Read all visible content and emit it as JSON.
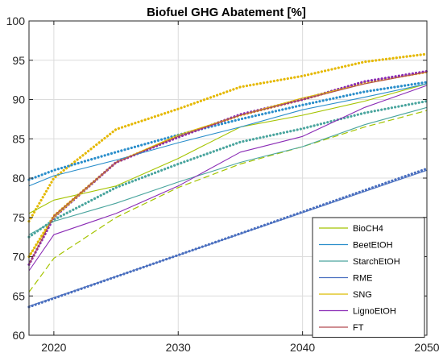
{
  "chart_data": {
    "type": "line",
    "title": "Biofuel GHG Abatement [%]",
    "xlabel": "",
    "ylabel": "",
    "xlim": [
      2018,
      2050
    ],
    "ylim": [
      60,
      100
    ],
    "xticks": [
      2020,
      2030,
      2040,
      2050
    ],
    "yticks": [
      60,
      65,
      70,
      75,
      80,
      85,
      90,
      95,
      100
    ],
    "grid": true,
    "legend_position": "bottom-right",
    "series": [
      {
        "name": "BioCH4",
        "color": "#a5c400",
        "x": [
          2018,
          2020,
          2025,
          2030,
          2035,
          2040,
          2045,
          2050
        ],
        "y": [
          75.5,
          77.2,
          79.0,
          82.5,
          86.5,
          88.0,
          89.8,
          92.0
        ]
      },
      {
        "name": "BeetEtOH",
        "color": "#2a8ecb",
        "x": [
          2018,
          2020,
          2025,
          2030,
          2035,
          2040,
          2045,
          2050
        ],
        "y": [
          79.0,
          80.3,
          82.3,
          84.5,
          86.5,
          88.7,
          90.3,
          92.0
        ]
      },
      {
        "name": "StarchEtOH",
        "color": "#4aa59e",
        "x": [
          2018,
          2020,
          2025,
          2030,
          2035,
          2040,
          2045,
          2050
        ],
        "y": [
          72.8,
          74.5,
          76.8,
          79.5,
          82.0,
          84.0,
          86.8,
          89.0
        ]
      },
      {
        "name": "RME",
        "color": "#4a6fbf",
        "x": [
          2018,
          2050
        ],
        "y": [
          63.7,
          81.0
        ]
      },
      {
        "name": "SNG",
        "color": "#dcbc00",
        "x": [
          2018,
          2020,
          2025,
          2030,
          2035,
          2040,
          2045,
          2050
        ],
        "y": [
          70.0,
          75.0,
          82.0,
          85.5,
          88.0,
          90.2,
          92.0,
          93.5
        ]
      },
      {
        "name": "LignoEtOH",
        "color": "#8a2bb5",
        "x": [
          2018,
          2020,
          2025,
          2030,
          2035,
          2040,
          2045,
          2050
        ],
        "y": [
          68.2,
          72.8,
          75.5,
          79.0,
          83.3,
          85.3,
          89.0,
          91.8
        ]
      },
      {
        "name": "FT",
        "color": "#b24a50",
        "x": [
          2018,
          2020,
          2025,
          2030,
          2035,
          2040,
          2045,
          2050
        ],
        "y": [
          69.0,
          75.2,
          82.0,
          85.3,
          88.0,
          90.0,
          92.0,
          93.5
        ]
      }
    ],
    "overlay_series": [
      {
        "color": "#e5b800",
        "style": "dotted",
        "x": [
          2018,
          2020,
          2025,
          2030,
          2035,
          2040,
          2045,
          2050
        ],
        "y": [
          74.5,
          80.0,
          86.2,
          88.8,
          91.6,
          93.0,
          94.8,
          95.8
        ]
      },
      {
        "color": "#e5b800",
        "style": "dotted",
        "x": [
          2018,
          2020,
          2025,
          2030,
          2035,
          2040,
          2045,
          2050
        ],
        "y": [
          70.0,
          75.2,
          82.0,
          85.3,
          88.0,
          90.0,
          92.2,
          93.5
        ]
      },
      {
        "color": "#2a8ecb",
        "style": "dotted",
        "x": [
          2018,
          2020,
          2025,
          2030,
          2035,
          2040,
          2045,
          2050
        ],
        "y": [
          79.8,
          81.0,
          83.3,
          85.5,
          87.5,
          89.3,
          91.0,
          92.2
        ]
      },
      {
        "color": "#4aa59e",
        "style": "dotted",
        "x": [
          2018,
          2020,
          2025,
          2030,
          2035,
          2040,
          2045,
          2050
        ],
        "y": [
          72.5,
          74.7,
          78.8,
          81.8,
          84.6,
          86.3,
          88.3,
          89.8
        ]
      },
      {
        "color": "#a5c400",
        "style": "dashed",
        "x": [
          2018,
          2020,
          2025,
          2030,
          2035,
          2040,
          2045,
          2050
        ],
        "y": [
          65.5,
          69.8,
          75.0,
          78.8,
          81.8,
          84.0,
          86.5,
          88.6
        ]
      },
      {
        "color": "#4a6fbf",
        "style": "dotted",
        "x": [
          2018,
          2050
        ],
        "y": [
          63.6,
          81.2
        ]
      },
      {
        "color": "#8a2bb5",
        "style": "dotted",
        "x": [
          2018,
          2020,
          2025,
          2030,
          2035,
          2040,
          2045,
          2050
        ],
        "y": [
          69.0,
          75.0,
          82.0,
          85.2,
          88.1,
          90.0,
          92.3,
          93.6
        ]
      }
    ]
  }
}
